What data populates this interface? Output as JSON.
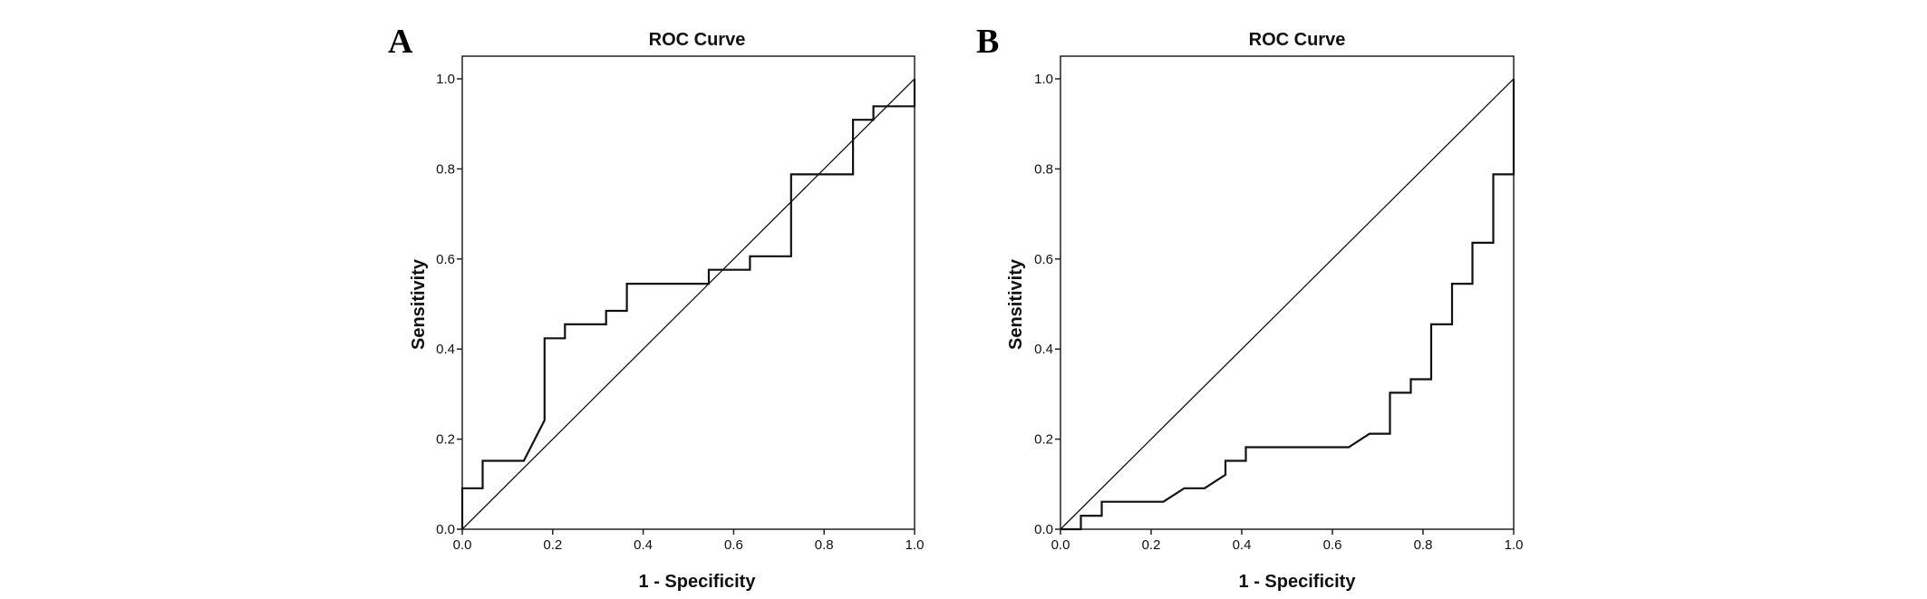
{
  "chart_data": [
    {
      "type": "line",
      "panel_label": "A",
      "title": "ROC Curve",
      "xlabel": "1 - Specificity",
      "ylabel": "Sensitivity",
      "xlim": [
        0,
        1
      ],
      "ylim": [
        0,
        1
      ],
      "xticks": [
        "0.0",
        "0.2",
        "0.4",
        "0.6",
        "0.8",
        "1.0"
      ],
      "yticks": [
        "0.0",
        "0.2",
        "0.4",
        "0.6",
        "0.8",
        "1.0"
      ],
      "grid": false,
      "series": [
        {
          "name": "ROC",
          "x": [
            0,
            0,
            0.045,
            0.045,
            0.136,
            0.182,
            0.182,
            0.227,
            0.227,
            0.318,
            0.318,
            0.364,
            0.364,
            0.545,
            0.545,
            0.636,
            0.636,
            0.727,
            0.727,
            0.864,
            0.864,
            0.909,
            0.909,
            1,
            1
          ],
          "y": [
            0,
            0.091,
            0.091,
            0.152,
            0.152,
            0.242,
            0.424,
            0.424,
            0.455,
            0.455,
            0.485,
            0.485,
            0.545,
            0.545,
            0.576,
            0.576,
            0.606,
            0.606,
            0.788,
            0.788,
            0.909,
            0.909,
            0.939,
            0.939,
            1
          ]
        },
        {
          "name": "Reference line",
          "x": [
            0,
            1
          ],
          "y": [
            0,
            1
          ]
        }
      ]
    },
    {
      "type": "line",
      "panel_label": "B",
      "title": "ROC Curve",
      "xlabel": "1 - Specificity",
      "ylabel": "Sensitivity",
      "xlim": [
        0,
        1
      ],
      "ylim": [
        0,
        1
      ],
      "xticks": [
        "0.0",
        "0.2",
        "0.4",
        "0.6",
        "0.8",
        "1.0"
      ],
      "yticks": [
        "0.0",
        "0.2",
        "0.4",
        "0.6",
        "0.8",
        "1.0"
      ],
      "grid": false,
      "series": [
        {
          "name": "ROC",
          "x": [
            0,
            0.045,
            0.045,
            0.091,
            0.091,
            0.227,
            0.273,
            0.318,
            0.364,
            0.364,
            0.409,
            0.409,
            0.636,
            0.682,
            0.727,
            0.727,
            0.773,
            0.773,
            0.818,
            0.818,
            0.864,
            0.864,
            0.909,
            0.909,
            0.955,
            0.955,
            1,
            1
          ],
          "y": [
            0,
            0,
            0.03,
            0.03,
            0.061,
            0.061,
            0.091,
            0.091,
            0.121,
            0.152,
            0.152,
            0.182,
            0.182,
            0.212,
            0.212,
            0.303,
            0.303,
            0.333,
            0.333,
            0.455,
            0.455,
            0.545,
            0.545,
            0.636,
            0.636,
            0.788,
            0.788,
            1
          ]
        },
        {
          "name": "Reference line",
          "x": [
            0,
            1
          ],
          "y": [
            0,
            1
          ]
        }
      ]
    }
  ]
}
